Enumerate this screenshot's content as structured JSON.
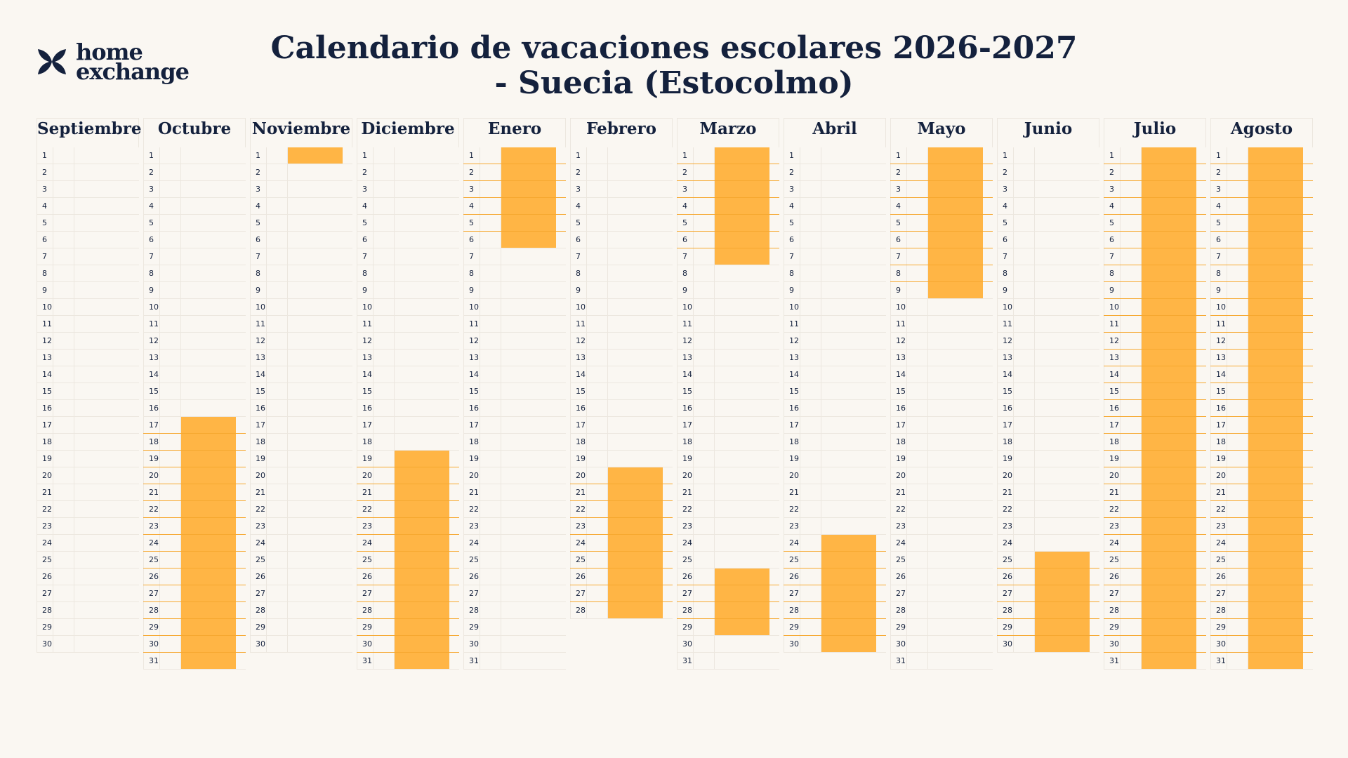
{
  "brand": {
    "name_line1": "home",
    "name_line2": "exchange",
    "logo_icon": "homeexchange-logo-icon"
  },
  "title": "Calendario de vacaciones escolares 2026-2027 - Suecia (Estocolmo)",
  "colors": {
    "holiday": "#ffb545",
    "text": "#14213d",
    "background": "#faf7f2"
  },
  "months": [
    {
      "name": "Septiembre",
      "days": 30,
      "holidays": []
    },
    {
      "name": "Octubre",
      "days": 31,
      "holidays": [
        [
          17,
          31
        ]
      ]
    },
    {
      "name": "Noviembre",
      "days": 30,
      "holidays": [
        [
          1,
          1
        ]
      ]
    },
    {
      "name": "Diciembre",
      "days": 31,
      "holidays": [
        [
          19,
          31
        ]
      ]
    },
    {
      "name": "Enero",
      "days": 31,
      "holidays": [
        [
          1,
          6
        ]
      ]
    },
    {
      "name": "Febrero",
      "days": 28,
      "holidays": [
        [
          20,
          28
        ]
      ]
    },
    {
      "name": "Marzo",
      "days": 31,
      "holidays": [
        [
          1,
          7
        ],
        [
          26,
          29
        ]
      ]
    },
    {
      "name": "Abril",
      "days": 30,
      "holidays": [
        [
          24,
          30
        ]
      ]
    },
    {
      "name": "Mayo",
      "days": 31,
      "holidays": [
        [
          1,
          9
        ]
      ]
    },
    {
      "name": "Junio",
      "days": 30,
      "holidays": [
        [
          25,
          30
        ]
      ]
    },
    {
      "name": "Julio",
      "days": 31,
      "holidays": [
        [
          1,
          31
        ]
      ]
    },
    {
      "name": "Agosto",
      "days": 31,
      "holidays": [
        [
          1,
          31
        ]
      ]
    }
  ]
}
